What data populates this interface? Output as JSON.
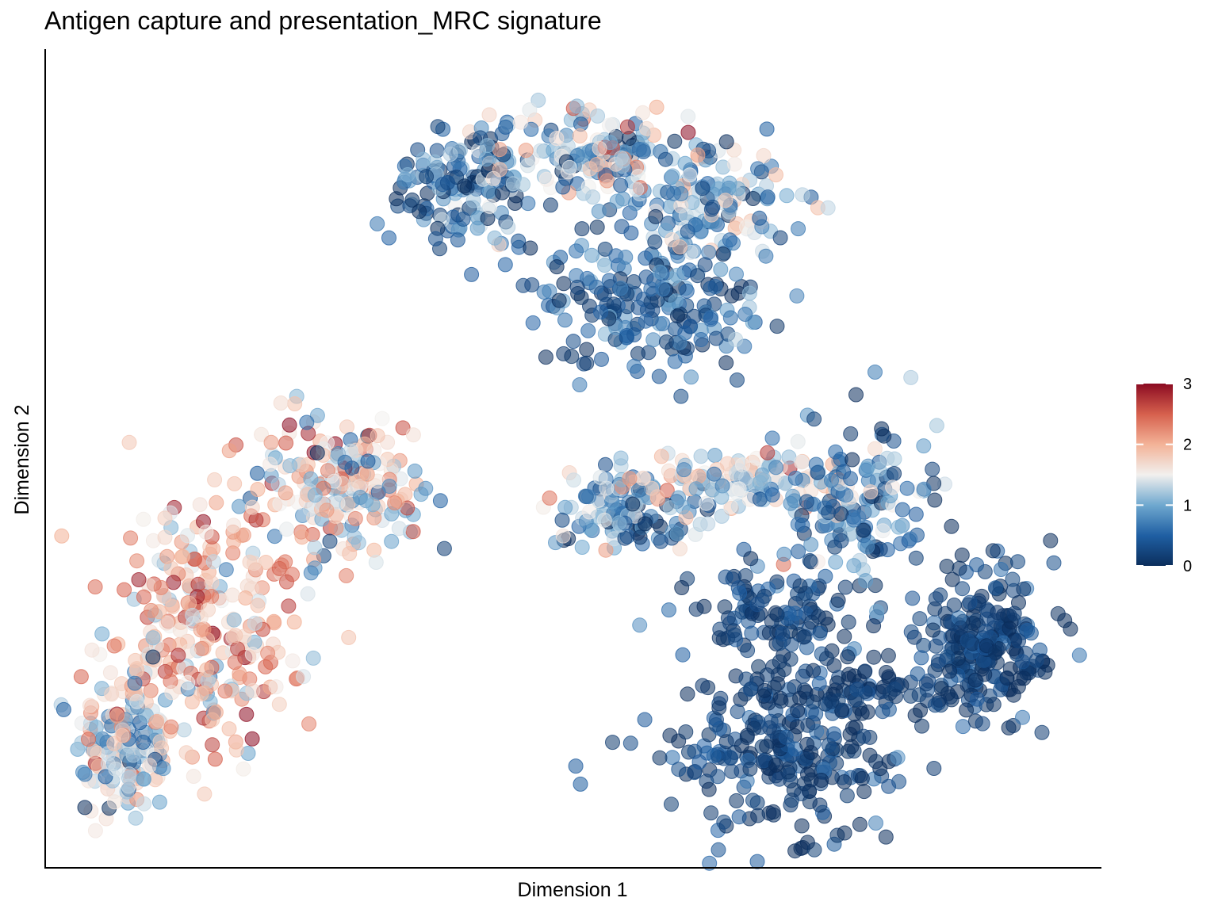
{
  "chart_data": {
    "type": "scatter",
    "title": "Antigen capture and presentation_MRC signature",
    "xlabel": "Dimension 1",
    "ylabel": "Dimension 2",
    "xlim": [
      0,
      100
    ],
    "ylim": [
      0,
      100
    ],
    "grid": false,
    "legend": {
      "type": "colorbar",
      "placement": "right",
      "min": 0,
      "max": 3,
      "ticks": [
        0,
        1,
        2,
        3
      ],
      "colors": [
        "#0b2e5c",
        "#1f5fa3",
        "#6fa8cf",
        "#f2f0ee",
        "#f3b297",
        "#d6604d",
        "#8b0b22"
      ]
    },
    "clusters": [
      {
        "name": "",
        "cx": 5,
        "cy": 12,
        "sx": 2.5,
        "sy": 5,
        "n": 150,
        "mean": 1.4,
        "spread": 0.6
      },
      {
        "name": "",
        "cx": 13,
        "cy": 28,
        "sx": 5,
        "sy": 8,
        "n": 280,
        "mean": 1.9,
        "spread": 0.5
      },
      {
        "name": "",
        "cx": 27,
        "cy": 46,
        "sx": 4.5,
        "sy": 5,
        "n": 200,
        "mean": 1.5,
        "spread": 0.6
      },
      {
        "name": "",
        "cx": 39,
        "cy": 85,
        "sx": 4,
        "sy": 4,
        "n": 140,
        "mean": 0.6,
        "spread": 0.5
      },
      {
        "name": "",
        "cx": 52,
        "cy": 90,
        "sx": 5,
        "sy": 3,
        "n": 170,
        "mean": 1.2,
        "spread": 0.6
      },
      {
        "name": "",
        "cx": 63,
        "cy": 83,
        "sx": 4.5,
        "sy": 4,
        "n": 150,
        "mean": 1.0,
        "spread": 0.6
      },
      {
        "name": "",
        "cx": 58,
        "cy": 70,
        "sx": 6,
        "sy": 4,
        "n": 190,
        "mean": 0.4,
        "spread": 0.4
      },
      {
        "name": "",
        "cx": 56,
        "cy": 43,
        "sx": 4,
        "sy": 2.5,
        "n": 110,
        "mean": 0.7,
        "spread": 0.5
      },
      {
        "name": "",
        "cx": 66,
        "cy": 47,
        "sx": 7,
        "sy": 2,
        "n": 130,
        "mean": 1.4,
        "spread": 0.5
      },
      {
        "name": "",
        "cx": 79,
        "cy": 43,
        "sx": 4,
        "sy": 6,
        "n": 150,
        "mean": 0.6,
        "spread": 0.5
      },
      {
        "name": "",
        "cx": 92,
        "cy": 25,
        "sx": 3.5,
        "sy": 5,
        "n": 230,
        "mean": 0.15,
        "spread": 0.25
      },
      {
        "name": "",
        "cx": 71,
        "cy": 12,
        "sx": 6,
        "sy": 5,
        "n": 260,
        "mean": 0.15,
        "spread": 0.25
      },
      {
        "name": "",
        "cx": 71,
        "cy": 29,
        "sx": 4,
        "sy": 3,
        "n": 110,
        "mean": 0.15,
        "spread": 0.25
      },
      {
        "name": "",
        "cx": 80,
        "cy": 20,
        "sx": 5,
        "sy": 2,
        "n": 60,
        "mean": 0.1,
        "spread": 0.2
      }
    ]
  }
}
